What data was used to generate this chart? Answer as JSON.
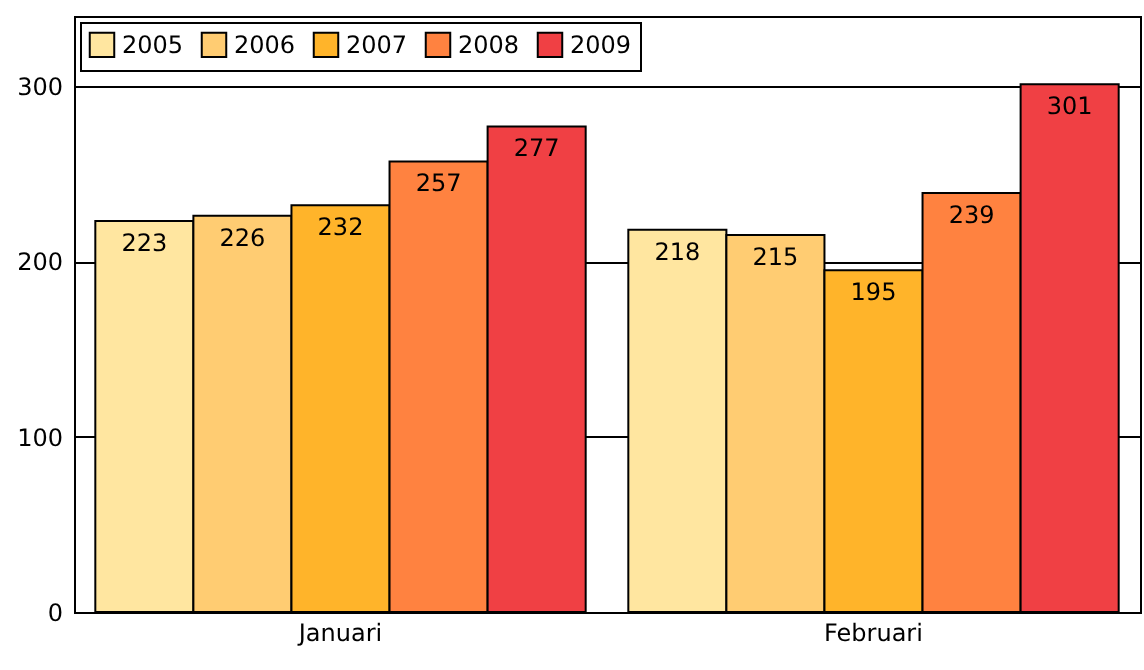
{
  "chart_data": {
    "type": "bar",
    "categories": [
      "Januari",
      "Februari"
    ],
    "series": [
      {
        "name": "2005",
        "color": "#ffe6a0",
        "values": [
          223,
          218
        ]
      },
      {
        "name": "2006",
        "color": "#ffcc72",
        "values": [
          226,
          215
        ]
      },
      {
        "name": "2007",
        "color": "#ffb42a",
        "values": [
          232,
          195
        ]
      },
      {
        "name": "2008",
        "color": "#ff8240",
        "values": [
          257,
          239
        ]
      },
      {
        "name": "2009",
        "color": "#f04044",
        "values": [
          277,
          301
        ]
      }
    ],
    "ylim": [
      0,
      340
    ],
    "yticks": [
      0,
      100,
      200,
      300
    ],
    "grid": "y",
    "legend": "top left",
    "data_labels": true
  }
}
